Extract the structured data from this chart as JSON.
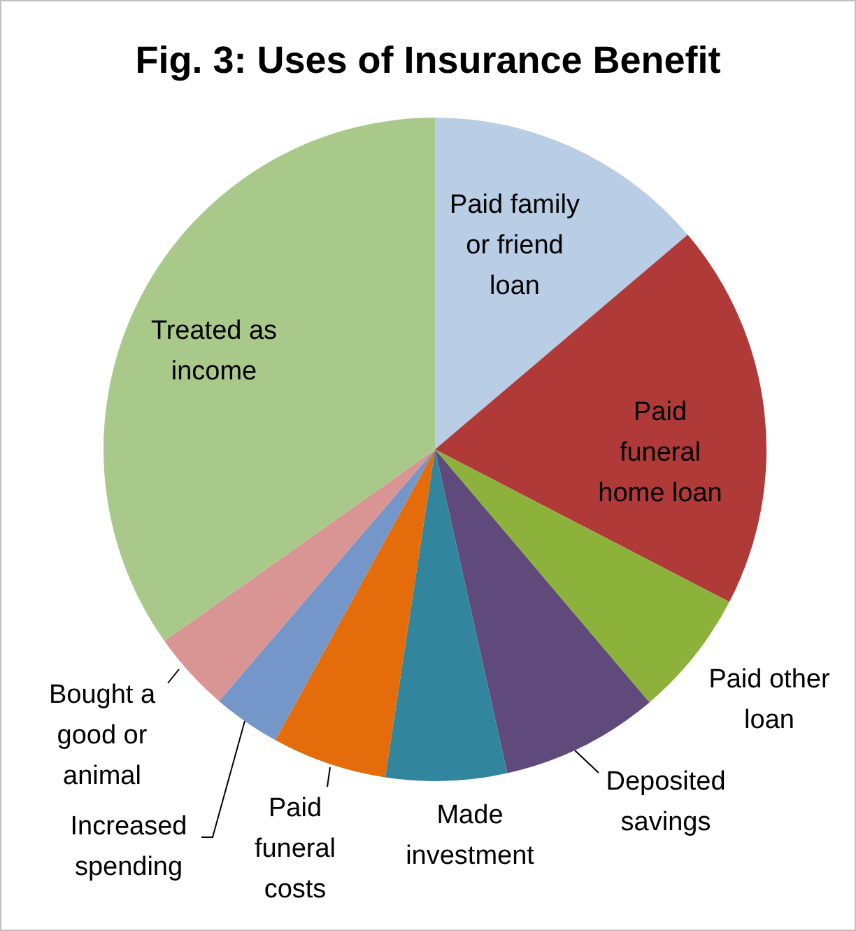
{
  "chart_data": {
    "type": "pie",
    "title": "Fig. 3: Uses of Insurance Benefit",
    "categories": [
      "Paid family or friend loan",
      "Paid funeral home loan",
      "Paid other loan",
      "Deposited savings",
      "Made investment",
      "Paid funeral costs",
      "Increased spending",
      "Bought a good or animal",
      "Treated as income"
    ],
    "values": [
      13.8,
      18.8,
      6.2,
      7.7,
      5.9,
      5.6,
      3.3,
      3.9,
      34.8
    ],
    "colors": [
      "#b9cde5",
      "#b03a38",
      "#8db23c",
      "#604a7b",
      "#31859c",
      "#e46c0a",
      "#7496c8",
      "#d99594",
      "#a9c98a"
    ]
  }
}
